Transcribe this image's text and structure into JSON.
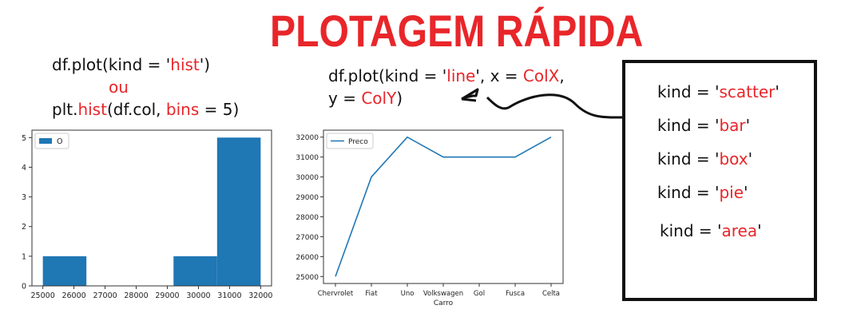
{
  "title": "PLOTAGEM RÁPIDA",
  "hist_code": {
    "line1_pre": "df.plot(kind = '",
    "line1_kw": "hist",
    "line1_post": "')",
    "ou": "ou",
    "line3_pre": "plt.",
    "line3_kw1": "hist",
    "line3_mid": "(df.col, ",
    "line3_kw2": "bins",
    "line3_post": " = 5)"
  },
  "line_code": {
    "l1_pre": "df.plot(kind = '",
    "l1_kw": "line",
    "l1_mid": "', x = ",
    "l1_kw2": "ColX",
    "l1_post": ",",
    "l2_pre": "y = ",
    "l2_kw": "ColY",
    "l2_post": ")"
  },
  "kinds": [
    {
      "pre": "kind = '",
      "kw": "scatter",
      "post": "'"
    },
    {
      "pre": "kind = '",
      "kw": "bar",
      "post": "'"
    },
    {
      "pre": "kind = '",
      "kw": "box",
      "post": "'"
    },
    {
      "pre": "kind = '",
      "kw": "pie",
      "post": "'"
    },
    {
      "pre": "kind = '",
      "kw": "area",
      "post": "'"
    }
  ],
  "colors": {
    "accent": "#e8262a",
    "bar": "#1f77b4",
    "line": "#1f77b4",
    "text": "#111111"
  },
  "chart_data": [
    {
      "type": "bar",
      "legend": "O",
      "legend_position": "top-left",
      "bins": [
        {
          "x0": 25000,
          "x1": 26400,
          "count": 1
        },
        {
          "x0": 26400,
          "x1": 27800,
          "count": 0
        },
        {
          "x0": 27800,
          "x1": 29200,
          "count": 0
        },
        {
          "x0": 29200,
          "x1": 30600,
          "count": 1
        },
        {
          "x0": 30600,
          "x1": 32000,
          "count": 5
        }
      ],
      "xticks": [
        25000,
        26000,
        27000,
        28000,
        29000,
        30000,
        31000,
        32000
      ],
      "yticks": [
        0,
        1,
        2,
        3,
        4,
        5
      ],
      "xlim": [
        24650,
        32350
      ],
      "ylim": [
        0,
        5.25
      ]
    },
    {
      "type": "line",
      "legend": "Preco",
      "legend_position": "top-left",
      "xlabel": "Carro",
      "categories": [
        "Chervrolet",
        "Fiat",
        "Uno",
        "Volkswagen",
        "Gol",
        "Fusca",
        "Celta"
      ],
      "values": [
        25000,
        30000,
        32000,
        31000,
        31000,
        31000,
        32000
      ],
      "yticks": [
        25000,
        26000,
        27000,
        28000,
        29000,
        30000,
        31000,
        32000
      ],
      "ylim": [
        24650,
        32350
      ]
    }
  ]
}
